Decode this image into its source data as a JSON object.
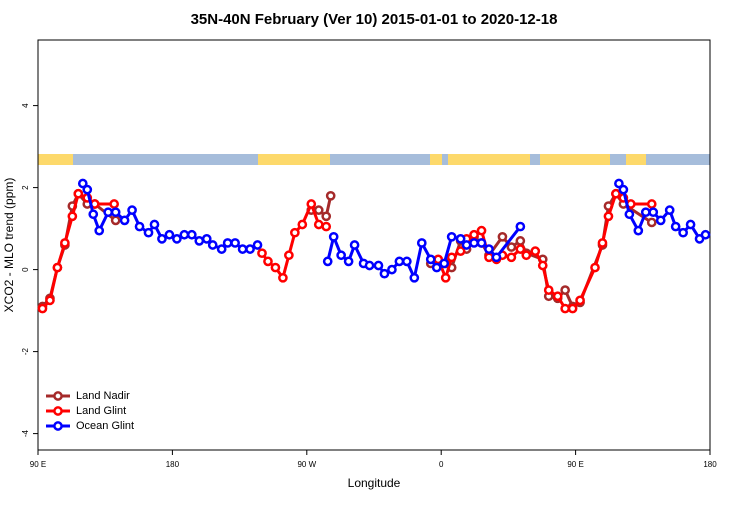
{
  "chart_data": {
    "type": "line",
    "title": "35N-40N February (Ver 10)   2015-01-01 to 2020-12-18",
    "x_label": "Longitude",
    "y_label": "XCO2 - MLO trend (ppm)",
    "xlim": [
      90,
      540
    ],
    "ylim": [
      -4.4,
      5.6
    ],
    "xticks": [
      {
        "value": 90,
        "label": "90 E"
      },
      180,
      {
        "value": 270,
        "label": "90 W"
      },
      {
        "value": 360,
        "label": "0"
      },
      {
        "value": 450,
        "label": "90 E"
      },
      180
    ],
    "yticks": [
      -4,
      -2,
      0,
      2,
      4
    ],
    "legend": "bottom left",
    "series": [
      {
        "name": "Land Nadir",
        "color": "#a52a2a",
        "x": [
          93,
          98,
          103,
          108,
          113,
          117,
          123,
          128,
          142,
          null,
          273,
          278,
          283,
          286,
          null,
          353,
          358,
          363,
          367,
          373,
          377,
          382,
          387,
          392,
          401,
          407,
          413,
          417,
          428,
          432,
          438,
          443,
          448,
          453,
          468,
          472,
          477,
          482,
          501
        ],
        "values": [
          -0.9,
          -0.7,
          0.05,
          0.6,
          1.55,
          1.85,
          1.6,
          1.6,
          1.2,
          null,
          1.45,
          1.45,
          1.3,
          1.8,
          null,
          0.15,
          0.2,
          0.15,
          0.05,
          0.7,
          0.5,
          0.8,
          0.65,
          0.35,
          0.8,
          0.55,
          0.7,
          0.4,
          0.25,
          -0.65,
          -0.7,
          -0.5,
          -0.9,
          -0.8,
          0.6,
          1.55,
          1.85,
          1.6,
          1.15
        ]
      },
      {
        "name": "Land Glint",
        "color": "#ff0000",
        "x": [
          93,
          98,
          103,
          108,
          113,
          117,
          123,
          128,
          141,
          null,
          240,
          244,
          249,
          254,
          258,
          262,
          267,
          273,
          278,
          283,
          null,
          358,
          363,
          367,
          373,
          377,
          382,
          387,
          392,
          397,
          401,
          407,
          413,
          417,
          423,
          428,
          432,
          438,
          443,
          448,
          453,
          463,
          468,
          472,
          477,
          482,
          487,
          501
        ],
        "values": [
          -0.95,
          -0.75,
          0.05,
          0.65,
          1.3,
          1.85,
          1.75,
          1.6,
          1.6,
          null,
          0.4,
          0.2,
          0.05,
          -0.2,
          0.35,
          0.9,
          1.1,
          1.6,
          1.1,
          1.05,
          null,
          0.25,
          -0.2,
          0.3,
          0.45,
          0.75,
          0.85,
          0.95,
          0.3,
          0.25,
          0.35,
          0.3,
          0.5,
          0.35,
          0.45,
          0.1,
          -0.5,
          -0.65,
          -0.95,
          -0.95,
          -0.75,
          0.05,
          0.65,
          1.3,
          1.85,
          1.75,
          1.6,
          1.6
        ]
      },
      {
        "name": "Ocean Glint",
        "color": "#0000ff",
        "x": [
          120,
          123,
          127,
          131,
          137,
          142,
          148,
          153,
          158,
          164,
          168,
          173,
          178,
          183,
          188,
          193,
          198,
          203,
          207,
          213,
          217,
          222,
          227,
          232,
          237,
          null,
          284,
          288,
          293,
          298,
          302,
          308,
          312,
          318,
          322,
          327,
          332,
          337,
          342,
          347,
          353,
          357,
          362,
          367,
          373,
          377,
          382,
          387,
          392,
          397,
          413,
          null,
          479,
          482,
          486,
          492,
          497,
          502,
          507,
          513,
          517,
          522,
          527,
          533,
          537
        ],
        "values": [
          2.1,
          1.95,
          1.35,
          0.95,
          1.4,
          1.4,
          1.2,
          1.45,
          1.05,
          0.9,
          1.1,
          0.75,
          0.85,
          0.75,
          0.85,
          0.85,
          0.7,
          0.75,
          0.6,
          0.5,
          0.65,
          0.65,
          0.5,
          0.5,
          0.6,
          null,
          0.2,
          0.8,
          0.35,
          0.2,
          0.6,
          0.15,
          0.1,
          0.1,
          -0.1,
          0.0,
          0.2,
          0.2,
          -0.2,
          0.65,
          0.25,
          0.05,
          0.15,
          0.8,
          0.75,
          0.6,
          0.65,
          0.65,
          0.5,
          0.3,
          1.05,
          null,
          2.1,
          1.95,
          1.35,
          0.95,
          1.4,
          1.4,
          1.2,
          1.45,
          1.05,
          0.9,
          1.1,
          0.75,
          0.85
        ]
      }
    ]
  }
}
